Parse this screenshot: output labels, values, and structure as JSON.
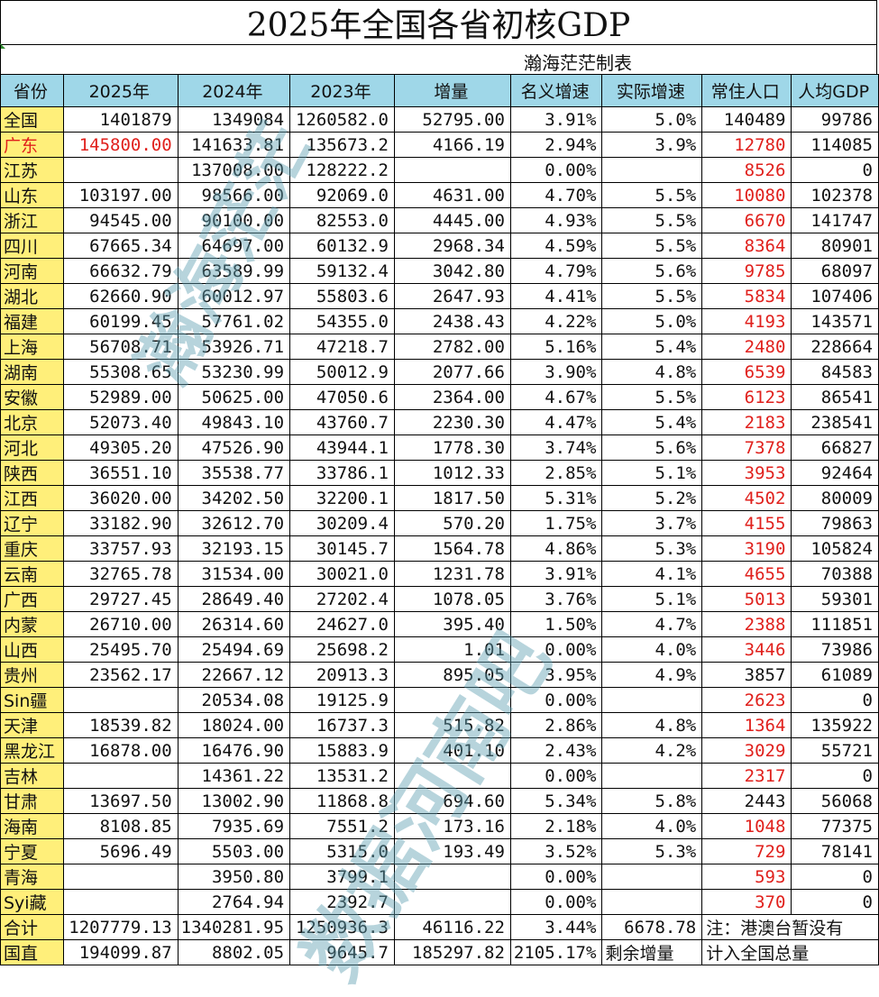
{
  "title": "2025年全国各省初核GDP",
  "maker": "瀚海茫茫制表",
  "watermark_1": "瀚海茫茫",
  "watermark_2": "数据河南吧",
  "headers": [
    "省份",
    "2025年",
    "2024年",
    "2023年",
    "增量",
    "名义增速",
    "实际增速",
    "常住人口",
    "人均GDP"
  ],
  "rows": [
    {
      "name": "全国",
      "y2025": "1401879",
      "y2024": "1349084",
      "y2023": "1260582.0",
      "inc": "52795.00",
      "nom": "3.91%",
      "real": "5.0%",
      "pop": "140489",
      "per": "99786",
      "red2025": false,
      "redpop": false
    },
    {
      "name": "广东",
      "y2025": "145800.00",
      "y2024": "141633.81",
      "y2023": "135673.2",
      "inc": "4166.19",
      "nom": "2.94%",
      "real": "3.9%",
      "pop": "12780",
      "per": "114085",
      "red2025": true,
      "redpop": true,
      "redname": true
    },
    {
      "name": "江苏",
      "y2025": "",
      "y2024": "137008.00",
      "y2023": "128222.2",
      "inc": "",
      "nom": "0.00%",
      "real": "",
      "pop": "8526",
      "per": "0",
      "red2025": false,
      "redpop": true
    },
    {
      "name": "山东",
      "y2025": "103197.00",
      "y2024": "98566.00",
      "y2023": "92069.0",
      "inc": "4631.00",
      "nom": "4.70%",
      "real": "5.5%",
      "pop": "10080",
      "per": "102378",
      "red2025": false,
      "redpop": true
    },
    {
      "name": "浙江",
      "y2025": "94545.00",
      "y2024": "90100.00",
      "y2023": "82553.0",
      "inc": "4445.00",
      "nom": "4.93%",
      "real": "5.5%",
      "pop": "6670",
      "per": "141747",
      "red2025": false,
      "redpop": true
    },
    {
      "name": "四川",
      "y2025": "67665.34",
      "y2024": "64697.00",
      "y2023": "60132.9",
      "inc": "2968.34",
      "nom": "4.59%",
      "real": "5.5%",
      "pop": "8364",
      "per": "80901",
      "red2025": false,
      "redpop": true
    },
    {
      "name": "河南",
      "y2025": "66632.79",
      "y2024": "63589.99",
      "y2023": "59132.4",
      "inc": "3042.80",
      "nom": "4.79%",
      "real": "5.6%",
      "pop": "9785",
      "per": "68097",
      "red2025": false,
      "redpop": true
    },
    {
      "name": "湖北",
      "y2025": "62660.90",
      "y2024": "60012.97",
      "y2023": "55803.6",
      "inc": "2647.93",
      "nom": "4.41%",
      "real": "5.5%",
      "pop": "5834",
      "per": "107406",
      "red2025": false,
      "redpop": true
    },
    {
      "name": "福建",
      "y2025": "60199.45",
      "y2024": "57761.02",
      "y2023": "54355.0",
      "inc": "2438.43",
      "nom": "4.22%",
      "real": "5.0%",
      "pop": "4193",
      "per": "143571",
      "red2025": false,
      "redpop": true
    },
    {
      "name": "上海",
      "y2025": "56708.71",
      "y2024": "53926.71",
      "y2023": "47218.7",
      "inc": "2782.00",
      "nom": "5.16%",
      "real": "5.4%",
      "pop": "2480",
      "per": "228664",
      "red2025": false,
      "redpop": true
    },
    {
      "name": "湖南",
      "y2025": "55308.65",
      "y2024": "53230.99",
      "y2023": "50012.9",
      "inc": "2077.66",
      "nom": "3.90%",
      "real": "4.8%",
      "pop": "6539",
      "per": "84583",
      "red2025": false,
      "redpop": true
    },
    {
      "name": "安徽",
      "y2025": "52989.00",
      "y2024": "50625.00",
      "y2023": "47050.6",
      "inc": "2364.00",
      "nom": "4.67%",
      "real": "5.5%",
      "pop": "6123",
      "per": "86541",
      "red2025": false,
      "redpop": true
    },
    {
      "name": "北京",
      "y2025": "52073.40",
      "y2024": "49843.10",
      "y2023": "43760.7",
      "inc": "2230.30",
      "nom": "4.47%",
      "real": "5.4%",
      "pop": "2183",
      "per": "238541",
      "red2025": false,
      "redpop": true
    },
    {
      "name": "河北",
      "y2025": "49305.20",
      "y2024": "47526.90",
      "y2023": "43944.1",
      "inc": "1778.30",
      "nom": "3.74%",
      "real": "5.6%",
      "pop": "7378",
      "per": "66827",
      "red2025": false,
      "redpop": true
    },
    {
      "name": "陕西",
      "y2025": "36551.10",
      "y2024": "35538.77",
      "y2023": "33786.1",
      "inc": "1012.33",
      "nom": "2.85%",
      "real": "5.1%",
      "pop": "3953",
      "per": "92464",
      "red2025": false,
      "redpop": true
    },
    {
      "name": "江西",
      "y2025": "36020.00",
      "y2024": "34202.50",
      "y2023": "32200.1",
      "inc": "1817.50",
      "nom": "5.31%",
      "real": "5.2%",
      "pop": "4502",
      "per": "80009",
      "red2025": false,
      "redpop": true
    },
    {
      "name": "辽宁",
      "y2025": "33182.90",
      "y2024": "32612.70",
      "y2023": "30209.4",
      "inc": "570.20",
      "nom": "1.75%",
      "real": "3.7%",
      "pop": "4155",
      "per": "79863",
      "red2025": false,
      "redpop": true
    },
    {
      "name": "重庆",
      "y2025": "33757.93",
      "y2024": "32193.15",
      "y2023": "30145.7",
      "inc": "1564.78",
      "nom": "4.86%",
      "real": "5.3%",
      "pop": "3190",
      "per": "105824",
      "red2025": false,
      "redpop": true
    },
    {
      "name": "云南",
      "y2025": "32765.78",
      "y2024": "31534.00",
      "y2023": "30021.0",
      "inc": "1231.78",
      "nom": "3.91%",
      "real": "4.1%",
      "pop": "4655",
      "per": "70388",
      "red2025": false,
      "redpop": true
    },
    {
      "name": "广西",
      "y2025": "29727.45",
      "y2024": "28649.40",
      "y2023": "27202.4",
      "inc": "1078.05",
      "nom": "3.76%",
      "real": "5.1%",
      "pop": "5013",
      "per": "59301",
      "red2025": false,
      "redpop": true
    },
    {
      "name": "内蒙",
      "y2025": "26710.00",
      "y2024": "26314.60",
      "y2023": "24627.0",
      "inc": "395.40",
      "nom": "1.50%",
      "real": "4.7%",
      "pop": "2388",
      "per": "111851",
      "red2025": false,
      "redpop": true
    },
    {
      "name": "山西",
      "y2025": "25495.70",
      "y2024": "25494.69",
      "y2023": "25698.2",
      "inc": "1.01",
      "nom": "0.00%",
      "real": "4.0%",
      "pop": "3446",
      "per": "73986",
      "red2025": false,
      "redpop": true
    },
    {
      "name": "贵州",
      "y2025": "23562.17",
      "y2024": "22667.12",
      "y2023": "20913.3",
      "inc": "895.05",
      "nom": "3.95%",
      "real": "4.9%",
      "pop": "3857",
      "per": "61089",
      "red2025": false,
      "redpop": false
    },
    {
      "name": "Sin疆",
      "y2025": "",
      "y2024": "20534.08",
      "y2023": "19125.9",
      "inc": "",
      "nom": "0.00%",
      "real": "",
      "pop": "2623",
      "per": "0",
      "red2025": false,
      "redpop": true
    },
    {
      "name": "天津",
      "y2025": "18539.82",
      "y2024": "18024.00",
      "y2023": "16737.3",
      "inc": "515.82",
      "nom": "2.86%",
      "real": "4.8%",
      "pop": "1364",
      "per": "135922",
      "red2025": false,
      "redpop": true
    },
    {
      "name": "黑龙江",
      "y2025": "16878.00",
      "y2024": "16476.90",
      "y2023": "15883.9",
      "inc": "401.10",
      "nom": "2.43%",
      "real": "4.2%",
      "pop": "3029",
      "per": "55721",
      "red2025": false,
      "redpop": true
    },
    {
      "name": "吉林",
      "y2025": "",
      "y2024": "14361.22",
      "y2023": "13531.2",
      "inc": "",
      "nom": "0.00%",
      "real": "",
      "pop": "2317",
      "per": "0",
      "red2025": false,
      "redpop": true
    },
    {
      "name": "甘肃",
      "y2025": "13697.50",
      "y2024": "13002.90",
      "y2023": "11868.8",
      "inc": "694.60",
      "nom": "5.34%",
      "real": "5.8%",
      "pop": "2443",
      "per": "56068",
      "red2025": false,
      "redpop": false
    },
    {
      "name": "海南",
      "y2025": "8108.85",
      "y2024": "7935.69",
      "y2023": "7551.2",
      "inc": "173.16",
      "nom": "2.18%",
      "real": "4.0%",
      "pop": "1048",
      "per": "77375",
      "red2025": false,
      "redpop": true
    },
    {
      "name": "宁夏",
      "y2025": "5696.49",
      "y2024": "5503.00",
      "y2023": "5315.0",
      "inc": "193.49",
      "nom": "3.52%",
      "real": "5.3%",
      "pop": "729",
      "per": "78141",
      "red2025": false,
      "redpop": true
    },
    {
      "name": "青海",
      "y2025": "",
      "y2024": "3950.80",
      "y2023": "3799.1",
      "inc": "",
      "nom": "0.00%",
      "real": "",
      "pop": "593",
      "per": "0",
      "red2025": false,
      "redpop": true
    },
    {
      "name": "Syi藏",
      "y2025": "",
      "y2024": "2764.94",
      "y2023": "2392.7",
      "inc": "",
      "nom": "0.00%",
      "real": "",
      "pop": "370",
      "per": "0",
      "red2025": false,
      "redpop": true
    }
  ],
  "total": {
    "name": "合计",
    "y2025": "1207779.13",
    "y2024": "1340281.95",
    "y2023": "1250936.3",
    "inc": "46116.22",
    "nom": "3.44%",
    "real": "6678.78",
    "note": "注：港澳台暂没有"
  },
  "direct": {
    "name": "国直",
    "y2025": "194099.87",
    "y2024": "8802.05",
    "y2023": "9645.7",
    "inc": "185297.82",
    "nom": "2105.17%",
    "remain_label": "剩余增量",
    "note": "计入全国总量"
  },
  "colors": {
    "header_bg": "#9fd7e8",
    "province_bg": "#ffef7a",
    "red": "#e0201c",
    "watermark": "#60a0b2"
  }
}
